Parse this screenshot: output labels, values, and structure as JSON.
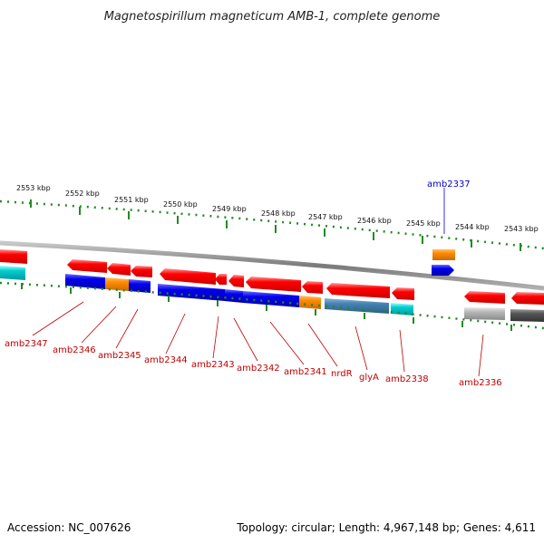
{
  "title": "Magnetospirillum magneticum AMB-1, complete genome",
  "ticks": [
    "2553 kbp",
    "2552 kbp",
    "2551 kbp",
    "2550 kbp",
    "2549 kbp",
    "2548 kbp",
    "2547 kbp",
    "2546 kbp",
    "2545 kbp",
    "2544 kbp",
    "2543 kbp"
  ],
  "genes": [
    {
      "name": "amb2347",
      "color": "#0000ee"
    },
    {
      "name": "amb2346",
      "color": "#ff8c00"
    },
    {
      "name": "amb2345",
      "color": "#0000ee"
    },
    {
      "name": "amb2344",
      "color": "#0000ee"
    },
    {
      "name": "amb2343",
      "color": "#0000ee"
    },
    {
      "name": "amb2342",
      "color": "#0000ee"
    },
    {
      "name": "amb2341",
      "color": "#ff8c00"
    },
    {
      "name": "nrdR",
      "color": "#4682b4"
    },
    {
      "name": "glyA",
      "color": "#00ced1"
    },
    {
      "name": "amb2338",
      "color": "#00ced1"
    },
    {
      "name": "amb2337",
      "color": "#ff8c00"
    },
    {
      "name": "amb2336",
      "color": "#aaaaaa"
    }
  ],
  "footer": {
    "accession": "Accession: NC_007626",
    "topology": "Topology: circular; Length: 4,967,148 bp; Genes: 4,611"
  },
  "colors": {
    "forward": "#ff0000",
    "reverse_blue": "#0000ee",
    "orange": "#ff8c00",
    "steel": "#4682b4",
    "cyan": "#00ced1",
    "grey": "#aaaaaa",
    "dark_grey": "#555555",
    "tick_green": "#228b22",
    "backbone": "#808080"
  }
}
